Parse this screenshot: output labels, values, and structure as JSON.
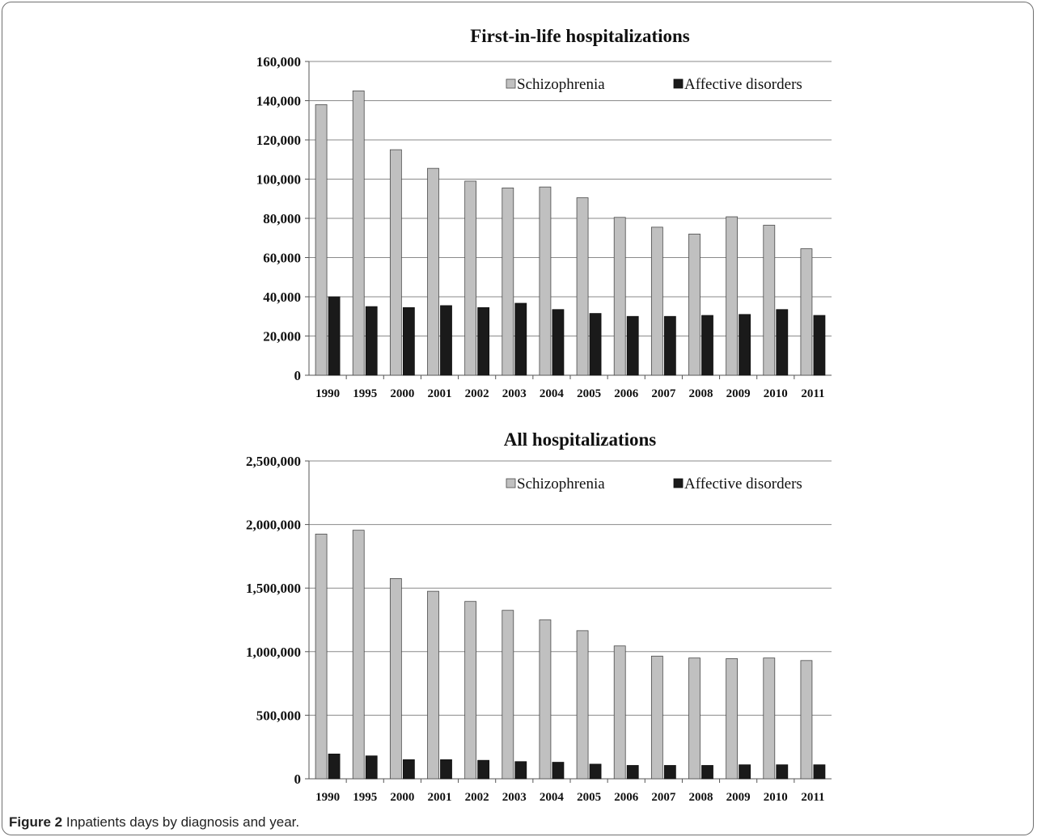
{
  "chart_data": [
    {
      "type": "bar",
      "title": "First-in-life hospitalizations",
      "categories": [
        "1990",
        "1995",
        "2000",
        "2001",
        "2002",
        "2003",
        "2004",
        "2005",
        "2006",
        "2007",
        "2008",
        "2009",
        "2010",
        "2011"
      ],
      "series": [
        {
          "name": "Schizophrenia",
          "color": "#c0c0c0",
          "values": [
            138000,
            145000,
            115000,
            105500,
            99000,
            95500,
            96000,
            90500,
            80500,
            75500,
            72000,
            80800,
            76500,
            64500
          ]
        },
        {
          "name": "Affective disorders",
          "color": "#1a1a1a",
          "values": [
            40000,
            35000,
            34500,
            35500,
            34500,
            36700,
            33500,
            31500,
            30000,
            30000,
            30500,
            31000,
            33500,
            30500
          ]
        }
      ],
      "yticks": [
        "0",
        "20,000",
        "40,000",
        "60,000",
        "80,000",
        "100,000",
        "120,000",
        "140,000",
        "160,000"
      ],
      "ylim": [
        0,
        160000
      ],
      "grid": true,
      "legend": "top-right"
    },
    {
      "type": "bar",
      "title": "All hospitalizations",
      "categories": [
        "1990",
        "1995",
        "2000",
        "2001",
        "2002",
        "2003",
        "2004",
        "2005",
        "2006",
        "2007",
        "2008",
        "2009",
        "2010",
        "2011"
      ],
      "series": [
        {
          "name": "Schizophrenia",
          "color": "#c0c0c0",
          "values": [
            1925000,
            1955000,
            1575000,
            1475000,
            1395000,
            1325000,
            1250000,
            1165000,
            1045000,
            965000,
            950000,
            945000,
            950000,
            930000
          ]
        },
        {
          "name": "Affective disorders",
          "color": "#1a1a1a",
          "values": [
            195000,
            180000,
            150000,
            150000,
            145000,
            135000,
            130000,
            115000,
            105000,
            105000,
            105000,
            110000,
            110000,
            110000
          ]
        }
      ],
      "yticks": [
        "0",
        "500,000",
        "1,000,000",
        "1,500,000",
        "2,000,000",
        "2,500,000"
      ],
      "ylim": [
        0,
        2500000
      ],
      "grid": true,
      "legend": "top-right"
    }
  ],
  "caption": {
    "label": "Figure 2",
    "text": " Inpatients days by diagnosis and year."
  }
}
